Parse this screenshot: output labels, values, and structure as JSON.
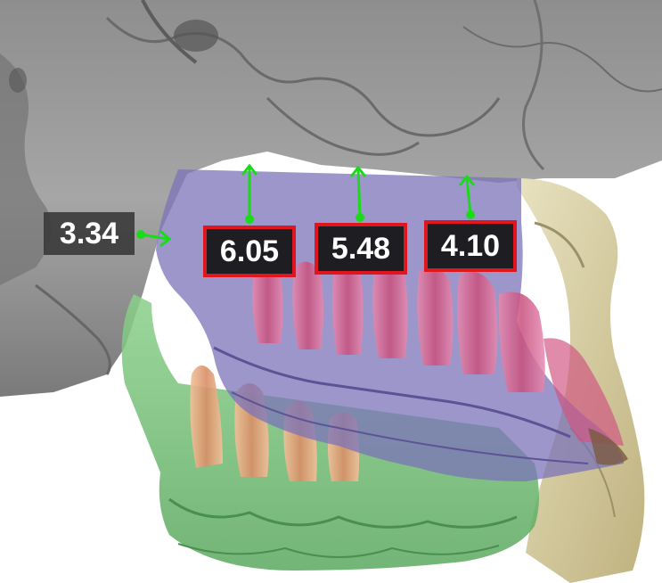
{
  "measurements": [
    {
      "id": "m1",
      "value": "3.34",
      "highlighted": false
    },
    {
      "id": "m2",
      "value": "6.05",
      "highlighted": true
    },
    {
      "id": "m3",
      "value": "5.48",
      "highlighted": true
    },
    {
      "id": "m4",
      "value": "4.10",
      "highlighted": true
    }
  ],
  "colors": {
    "bone": "#9a9a9a",
    "mandible_cast": "#6fbf73",
    "gingiva_overlay": "#7b73b8",
    "teeth": "#d9688f",
    "lower_teeth": "#e7a784",
    "bone_right": "#d9cfa2",
    "arrow": "#1adb1a",
    "highlight_border": "#e0161e"
  }
}
